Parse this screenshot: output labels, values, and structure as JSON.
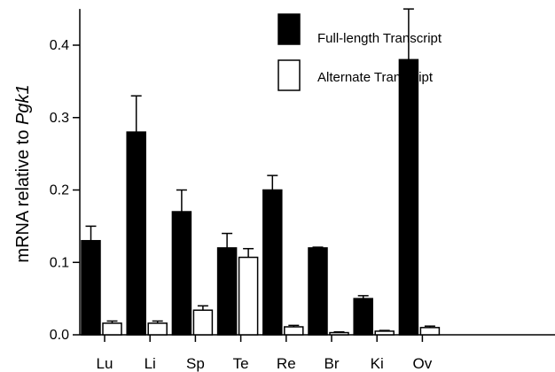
{
  "chart_data": {
    "type": "bar",
    "ylabel_plain": "mRNA relative to ",
    "ylabel_italic": "Pgk1",
    "xlabel": "",
    "ylim": [
      0,
      0.45
    ],
    "yticks": [
      0.0,
      0.1,
      0.2,
      0.3,
      0.4
    ],
    "ytick_labels": [
      "0.0",
      "0.1",
      "0.2",
      "0.3",
      "0.4"
    ],
    "categories": [
      "Lu",
      "Li",
      "Sp",
      "Te",
      "Re",
      "Br",
      "Ki",
      "Ov"
    ],
    "series": [
      {
        "name": "Full-length Transcript",
        "color": "#000000",
        "values": [
          0.13,
          0.28,
          0.17,
          0.12,
          0.2,
          0.12,
          0.05,
          0.38
        ],
        "errors": [
          0.02,
          0.05,
          0.03,
          0.02,
          0.02,
          0.001,
          0.004,
          0.07
        ]
      },
      {
        "name": "Alternate Transcript",
        "color": "#ffffff",
        "values": [
          0.016,
          0.016,
          0.034,
          0.107,
          0.011,
          0.003,
          0.005,
          0.01
        ],
        "errors": [
          0.003,
          0.003,
          0.006,
          0.012,
          0.002,
          0.001,
          0.001,
          0.002
        ]
      }
    ],
    "legend_position": "top-right",
    "grid": false
  }
}
